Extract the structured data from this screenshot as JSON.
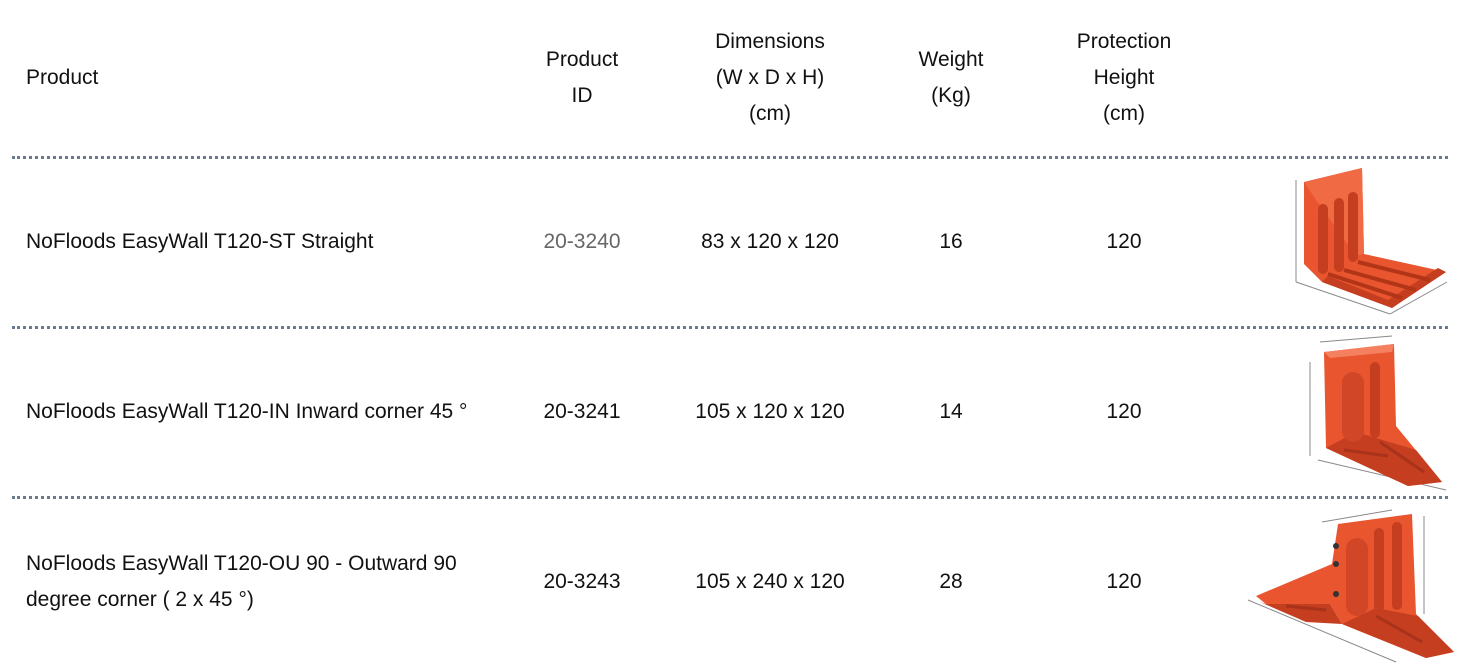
{
  "header": {
    "product": "Product",
    "product_id": "Product\nID",
    "dimensions": "Dimensions\n(W x D x H)\n(cm)",
    "weight": "Weight\n(Kg)",
    "protection_height": "Protection\nHeight\n(cm)"
  },
  "rows": [
    {
      "product": "NoFloods EasyWall T120-ST  Straight",
      "product_id": "20-3240",
      "dimensions": "83 x 120 x 120",
      "weight": "16",
      "protection_height": "120",
      "image_icon": "straight-wall-illustration"
    },
    {
      "product": "NoFloods EasyWall T120-IN  Inward corner 45 °",
      "product_id": "20-3241",
      "dimensions": "105 x 120 x 120",
      "weight": "14",
      "protection_height": "120",
      "image_icon": "inward-corner-illustration"
    },
    {
      "product": "NoFloods EasyWall T120-OU 90 - Outward 90\ndegree corner ( 2 x 45 °)",
      "product_id": "20-3243",
      "dimensions": "105 x 240 x 120",
      "weight": "28",
      "protection_height": "120",
      "image_icon": "outward-corner-illustration"
    }
  ],
  "colors": {
    "product_red": "#e8552f",
    "product_red_dark": "#c43e1f",
    "separator": "#6a7b8f"
  }
}
